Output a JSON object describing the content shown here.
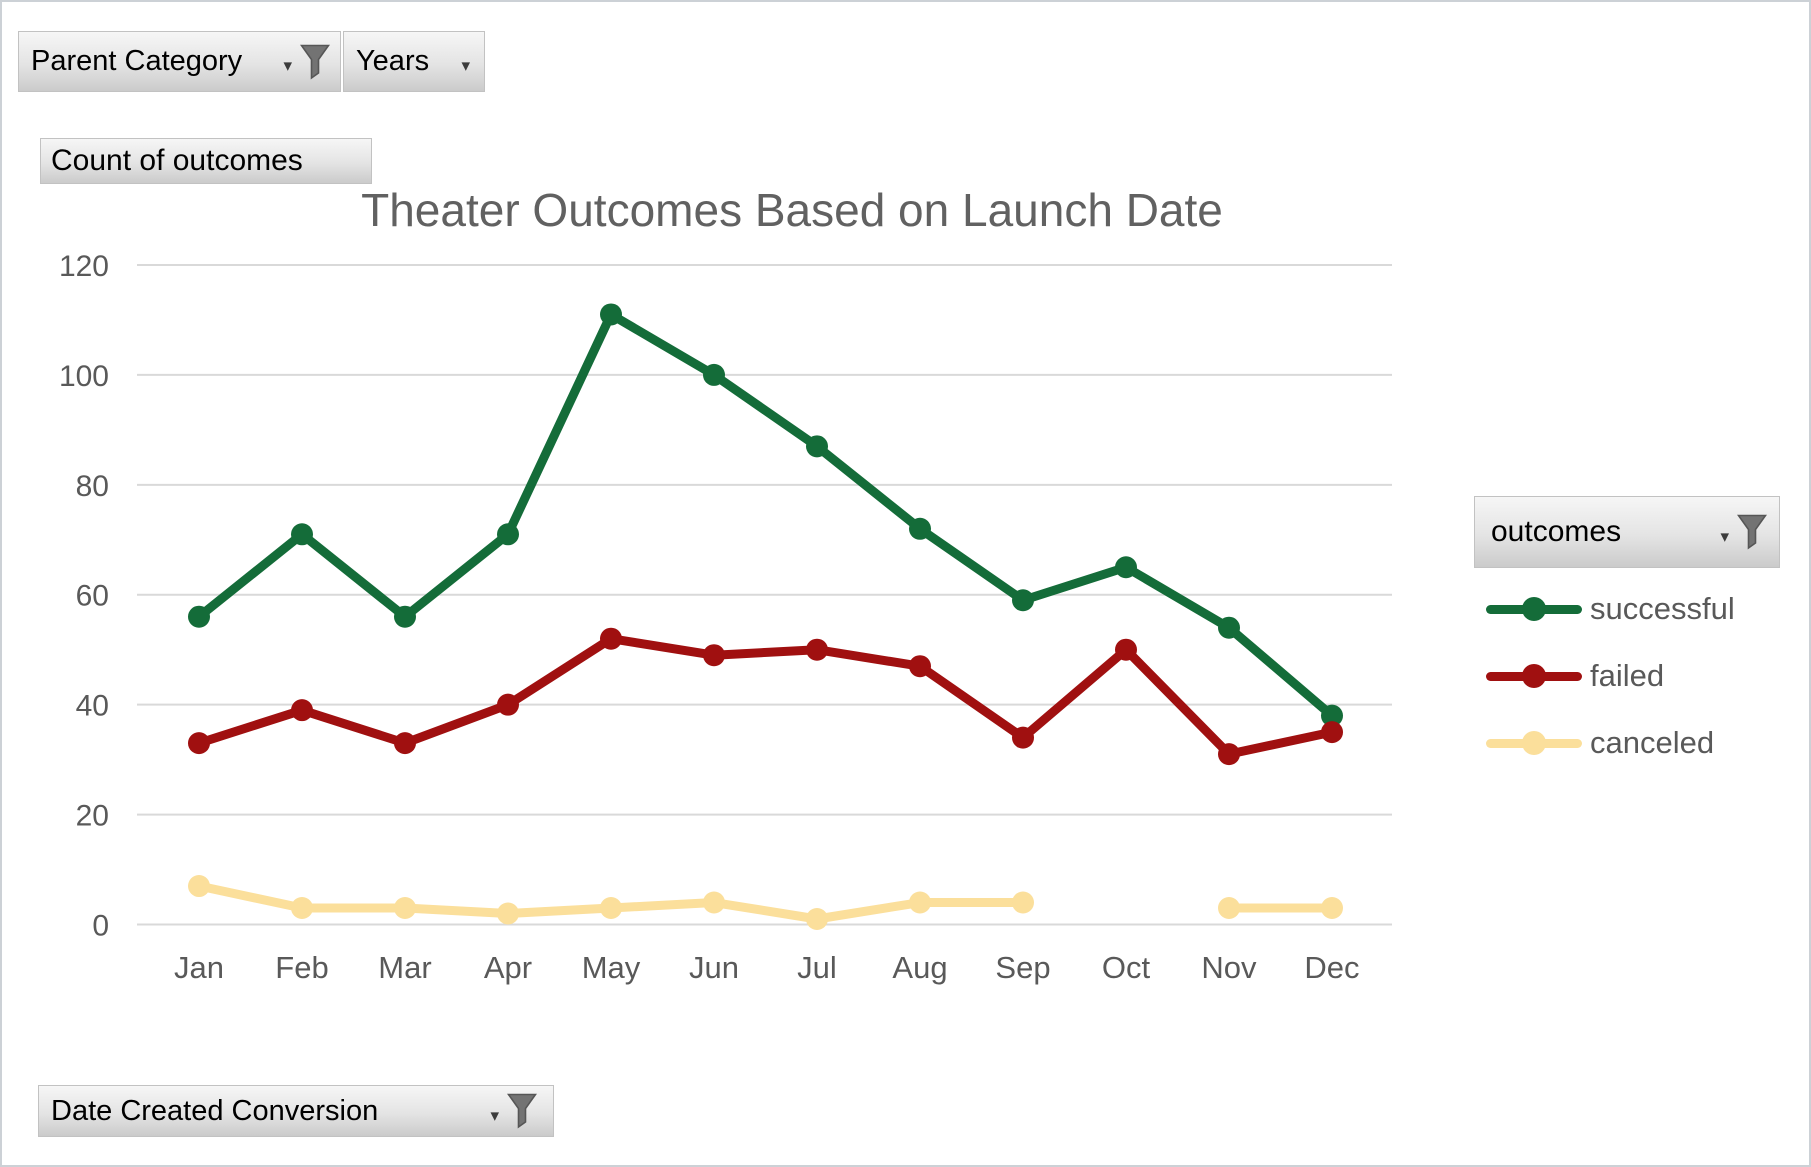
{
  "filters": {
    "parent_category": {
      "label": "Parent Category",
      "filtered": true
    },
    "years": {
      "label": "Years",
      "filtered": false
    },
    "values_button": {
      "label": "Count of outcomes"
    },
    "legend_button": {
      "label": "outcomes",
      "filtered": true
    },
    "axis_button": {
      "label": "Date Created Conversion",
      "filtered": true
    }
  },
  "icons": {
    "caret": "▾",
    "funnel": "filter-funnel-icon"
  },
  "colors": {
    "grid": "#D9D9D9",
    "axis_text": "#595959",
    "title_text": "#616161"
  },
  "chart_data": {
    "type": "line",
    "title": "Theater Outcomes Based on Launch Date",
    "categories": [
      "Jan",
      "Feb",
      "Mar",
      "Apr",
      "May",
      "Jun",
      "Jul",
      "Aug",
      "Sep",
      "Oct",
      "Nov",
      "Dec"
    ],
    "series": [
      {
        "name": "successful",
        "color": "#146C39",
        "values": [
          56,
          71,
          56,
          71,
          111,
          100,
          87,
          72,
          59,
          65,
          54,
          38
        ]
      },
      {
        "name": "failed",
        "color": "#A01010",
        "values": [
          33,
          39,
          33,
          40,
          52,
          49,
          50,
          47,
          34,
          50,
          31,
          35
        ]
      },
      {
        "name": "canceled",
        "color": "#FBDF9B",
        "values": [
          7,
          3,
          3,
          2,
          3,
          4,
          1,
          4,
          4,
          null,
          3,
          3
        ]
      }
    ],
    "ylim": [
      0,
      120
    ],
    "ytick_step": 20,
    "grid": true,
    "legend_position": "right",
    "xlabel": "",
    "ylabel": ""
  }
}
